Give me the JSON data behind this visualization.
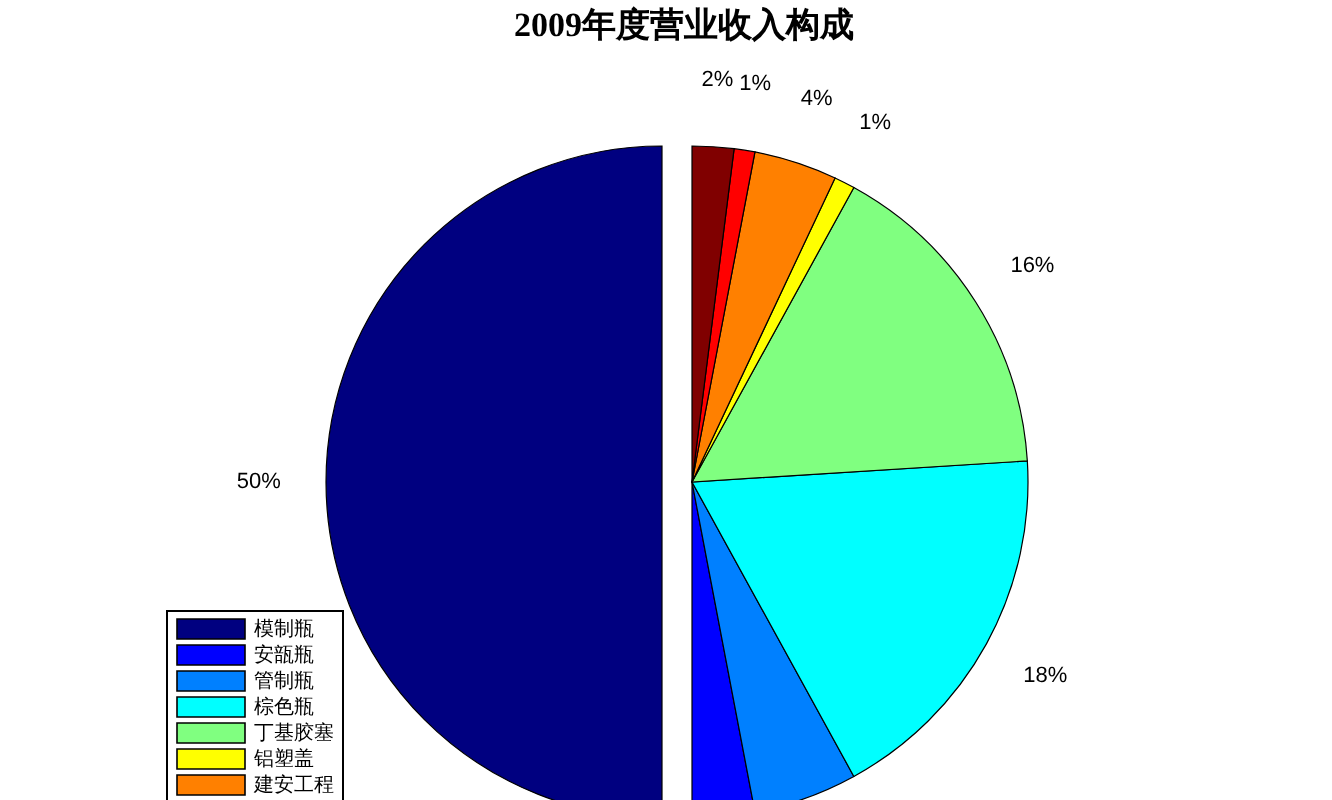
{
  "chart_data": {
    "type": "pie",
    "title": "2009年度营业收入构成",
    "categories": [
      "模制瓶",
      "安瓿瓶",
      "管制瓶",
      "棕色瓶",
      "丁基胶塞",
      "铝塑盖",
      "建安工程",
      null,
      null
    ],
    "values": [
      50,
      3,
      5,
      18,
      16,
      1,
      4,
      1,
      2
    ],
    "colors": [
      "#000080",
      "#0000ff",
      "#0080ff",
      "#00ffff",
      "#80ff80",
      "#ffff00",
      "#ff8000",
      "#ff0000",
      "#800000"
    ],
    "value_labels": [
      "50%",
      null,
      null,
      "18%",
      "16%",
      "1%",
      "4%",
      "1%",
      "2%"
    ],
    "legend": "bottom left"
  }
}
